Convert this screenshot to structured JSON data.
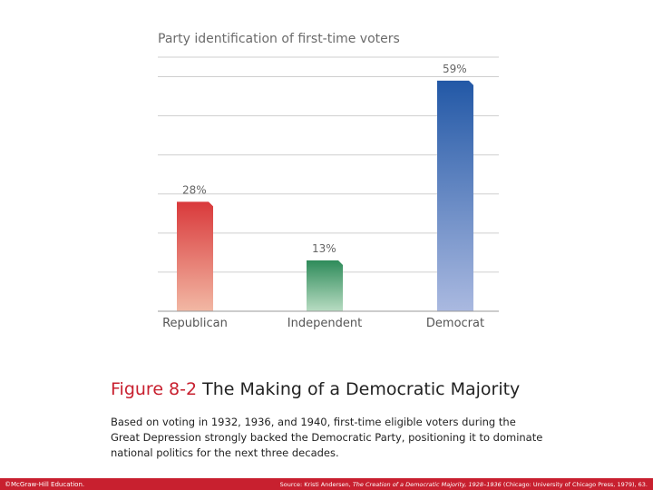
{
  "chart_data": {
    "type": "bar",
    "title": "Party identification of first-time voters",
    "categories": [
      "Republican",
      "Independent",
      "Democrat"
    ],
    "values": [
      28,
      13,
      59
    ],
    "value_labels": [
      "28%",
      "13%",
      "59%"
    ],
    "ylim": [
      0,
      65
    ],
    "gridlines": [
      0,
      10,
      20,
      30,
      40,
      50,
      60,
      65
    ],
    "xlabel": "",
    "ylabel": "",
    "colors": [
      "#d9393b",
      "#2e8b5a",
      "#2258a6"
    ]
  },
  "caption": {
    "figure_number": "Figure 8-2",
    "figure_title": "The Making of a Democratic Majority",
    "description": "Based on voting in 1932, 1936, and 1940, first-time eligible voters during the Great Depression strongly backed the Democratic Party, positioning it to dominate national politics for the next three decades."
  },
  "footer": {
    "copyright": "©McGraw-Hill Education.",
    "source_prefix": "Source: Kristi Andersen,",
    "source_title": "The Creation of a Democratic Majority, 1928–1936",
    "source_suffix": "(Chicago: University of Chicago Press, 1979), 63.",
    "bar_color": "#c8202f"
  }
}
